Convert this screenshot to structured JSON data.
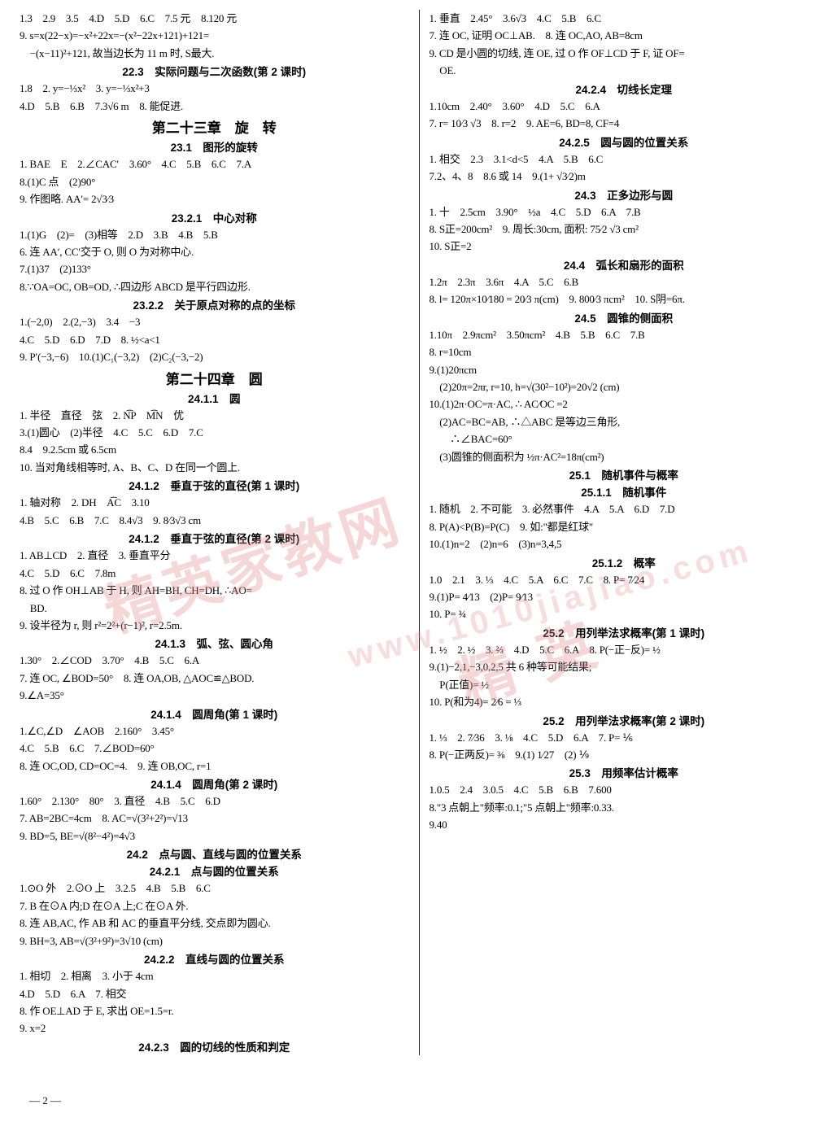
{
  "colors": {
    "text": "#000000",
    "bg": "#ffffff",
    "watermark": "#e59090",
    "rule": "#222222"
  },
  "fonts": {
    "body": "SimSun",
    "heading": "SimHei",
    "body_size": 13,
    "heading_big": 17,
    "heading_mid": 13.5
  },
  "watermarks": [
    "精英家教网",
    "www.1010jiajiao.com",
    "精 英"
  ],
  "page_number": "— 2 —",
  "left": [
    {
      "t": "l",
      "v": "1.3　2.9　3.5　4.D　5.D　6.C　7.5 元　8.120 元"
    },
    {
      "t": "l",
      "v": "9. s=x(22−x)=−x²+22x=−(x²−22x+121)+121="
    },
    {
      "t": "l",
      "v": "　−(x−11)²+121, 故当边长为 11 m 时, S最大."
    },
    {
      "t": "hm",
      "v": "22.3　实际问题与二次函数(第 2 课时)"
    },
    {
      "t": "l",
      "v": "1.8　2. y=−⅓x²　3. y=−⅓x²+3"
    },
    {
      "t": "l",
      "v": "4.D　5.B　6.B　7.3√6 m　8. 能促进."
    },
    {
      "t": "hb",
      "v": "第二十三章　旋　转"
    },
    {
      "t": "hm",
      "v": "23.1　图形的旋转"
    },
    {
      "t": "l",
      "v": "1. BAE　E　2.∠CAC′　3.60°　4.C　5.B　6.C　7.A"
    },
    {
      "t": "l",
      "v": "8.(1)C 点　(2)90°"
    },
    {
      "t": "l",
      "v": "9. 作图略. AA′= 2√3⁄3"
    },
    {
      "t": "hm",
      "v": "23.2.1　中心对称"
    },
    {
      "t": "l",
      "v": "1.(1)G　(2)=　(3)相等　2.D　3.B　4.B　5.B"
    },
    {
      "t": "l",
      "v": "6. 连 AA′, CC′交于 O, 则 O 为对称中心."
    },
    {
      "t": "l",
      "v": "7.(1)37　(2)133°"
    },
    {
      "t": "l",
      "v": "8.∵OA=OC, OB=OD, ∴四边形 ABCD 是平行四边形."
    },
    {
      "t": "hm",
      "v": "23.2.2　关于原点对称的点的坐标"
    },
    {
      "t": "l",
      "v": "1.(−2,0)　2.(2,−3)　3.4　−3"
    },
    {
      "t": "l",
      "v": "4.C　5.D　6.D　7.D　8. ½<a<1"
    },
    {
      "t": "l",
      "v": "9. P′(−3,−6)　10.(1)C₁(−3,2)　(2)C₂(−3,−2)"
    },
    {
      "t": "hb",
      "v": "第二十四章　圆"
    },
    {
      "t": "hm",
      "v": "24.1.1　圆"
    },
    {
      "t": "l",
      "v": "1. 半径　直径　弦　2. N͡P　M͡N　优"
    },
    {
      "t": "l",
      "v": "3.(1)圆心　(2)半径　4.C　5.C　6.D　7.C"
    },
    {
      "t": "l",
      "v": "8.4　9.2.5cm 或 6.5cm"
    },
    {
      "t": "l",
      "v": "10. 当对角线相等时, A、B、C、D 在同一个圆上."
    },
    {
      "t": "hm",
      "v": "24.1.2　垂直于弦的直径(第 1 课时)"
    },
    {
      "t": "l",
      "v": "1. 轴对称　2. DH　A͡C　3.10"
    },
    {
      "t": "l",
      "v": "4.B　5.C　6.B　7.C　8.4√3　9. 8⁄3√3 cm"
    },
    {
      "t": "hm",
      "v": "24.1.2　垂直于弦的直径(第 2 课时)"
    },
    {
      "t": "l",
      "v": "1. AB⊥CD　2. 直径　3. 垂直平分"
    },
    {
      "t": "l",
      "v": "4.C　5.D　6.C　7.8m"
    },
    {
      "t": "l",
      "v": "8. 过 O 作 OH⊥AB 于 H, 则 AH=BH, CH=DH, ∴AO="
    },
    {
      "t": "l",
      "v": "　BD."
    },
    {
      "t": "l",
      "v": "9. 设半径为 r, 则 r²=2²+(r−1)², r=2.5m."
    },
    {
      "t": "hm",
      "v": "24.1.3　弧、弦、圆心角"
    },
    {
      "t": "l",
      "v": "1.30°　2.∠COD　3.70°　4.B　5.C　6.A"
    },
    {
      "t": "l",
      "v": "7. 连 OC, ∠BOD=50°　8. 连 OA,OB, △AOC≌△BOD."
    },
    {
      "t": "l",
      "v": "9.∠A=35°"
    },
    {
      "t": "hm",
      "v": "24.1.4　圆周角(第 1 课时)"
    },
    {
      "t": "l",
      "v": "1.∠C,∠D　∠AOB　2.160°　3.45°"
    },
    {
      "t": "l",
      "v": "4.C　5.B　6.C　7.∠BOD=60°"
    },
    {
      "t": "l",
      "v": "8. 连 OC,OD, CD=OC=4.　9. 连 OB,OC, r=1"
    },
    {
      "t": "hm",
      "v": "24.1.4　圆周角(第 2 课时)"
    },
    {
      "t": "l",
      "v": "1.60°　2.130°　80°　3. 直径　4.B　5.C　6.D"
    },
    {
      "t": "l",
      "v": "7. AB=2BC=4cm　8. AC=√(3²+2²)=√13"
    },
    {
      "t": "l",
      "v": "9. BD=5, BE=√(8²−4²)=4√3"
    },
    {
      "t": "hm",
      "v": "24.2　点与圆、直线与圆的位置关系"
    },
    {
      "t": "hm",
      "v": "24.2.1　点与圆的位置关系"
    },
    {
      "t": "l",
      "v": "1.⊙O 外　2.⊙O 上　3.2.5　4.B　5.B　6.C"
    },
    {
      "t": "l",
      "v": "7. B 在⊙A 内;D 在⊙A 上;C 在⊙A 外."
    },
    {
      "t": "l",
      "v": "8. 连 AB,AC, 作 AB 和 AC 的垂直平分线, 交点即为圆心."
    },
    {
      "t": "l",
      "v": "9. BH=3, AB=√(3²+9²)=3√10 (cm)"
    },
    {
      "t": "hm",
      "v": "24.2.2　直线与圆的位置关系"
    },
    {
      "t": "l",
      "v": "1. 相切　2. 相离　3. 小于 4cm"
    },
    {
      "t": "l",
      "v": "4.D　5.D　6.A　7. 相交"
    },
    {
      "t": "l",
      "v": "8. 作 OE⊥AD 于 E, 求出 OE=1.5=r."
    },
    {
      "t": "l",
      "v": "9. x=2"
    },
    {
      "t": "hm",
      "v": "24.2.3　圆的切线的性质和判定"
    }
  ],
  "right": [
    {
      "t": "l",
      "v": "1. 垂直　2.45°　3.6√3　4.C　5.B　6.C"
    },
    {
      "t": "l",
      "v": "7. 连 OC, 证明 OC⊥AB.　8. 连 OC,AO, AB=8cm"
    },
    {
      "t": "l",
      "v": "9. CD 是小圆的切线, 连 OE, 过 O 作 OF⊥CD 于 F, 证 OF="
    },
    {
      "t": "l",
      "v": "　OE."
    },
    {
      "t": "hm",
      "v": "24.2.4　切线长定理"
    },
    {
      "t": "l",
      "v": "1.10cm　2.40°　3.60°　4.D　5.C　6.A"
    },
    {
      "t": "l",
      "v": "7. r= 10⁄3 √3　8. r=2　9. AE=6, BD=8, CF=4"
    },
    {
      "t": "hm",
      "v": "24.2.5　圆与圆的位置关系"
    },
    {
      "t": "l",
      "v": "1. 相交　2.3　3.1<d<5　4.A　5.B　6.C"
    },
    {
      "t": "l",
      "v": "7.2、4、8　8.6 或 14　9.(1+ √3⁄2)m"
    },
    {
      "t": "hm",
      "v": "24.3　正多边形与圆"
    },
    {
      "t": "l",
      "v": "1. 十　2.5cm　3.90°　½a　4.C　5.D　6.A　7.B"
    },
    {
      "t": "l",
      "v": "8. S正=200cm²　9. 周长:30cm, 面积: 75⁄2 √3 cm²"
    },
    {
      "t": "l",
      "v": "10. S正=2"
    },
    {
      "t": "hm",
      "v": "24.4　弧长和扇形的面积"
    },
    {
      "t": "l",
      "v": "1.2π　2.3π　3.6π　4.A　5.C　6.B"
    },
    {
      "t": "l",
      "v": "8. l= 120π×10⁄180 = 20⁄3 π(cm)　9. 800⁄3 πcm²　10. S阴=6π."
    },
    {
      "t": "hm",
      "v": "24.5　圆锥的侧面积"
    },
    {
      "t": "l",
      "v": "1.10π　2.9πcm²　3.50πcm²　4.B　5.B　6.C　7.B"
    },
    {
      "t": "l",
      "v": "8. r=10cm"
    },
    {
      "t": "l",
      "v": "9.(1)20πcm"
    },
    {
      "t": "l",
      "v": "　(2)20π=2πr, r=10, h=√(30²−10²)=20√2 (cm)"
    },
    {
      "t": "l",
      "v": "10.(1)2π·OC=π·AC, ∴ AC⁄OC =2"
    },
    {
      "t": "l",
      "v": "　(2)AC=BC=AB, ∴△ABC 是等边三角形,"
    },
    {
      "t": "l",
      "v": "　　∴∠BAC=60°"
    },
    {
      "t": "l",
      "v": "　(3)圆锥的侧面积为 ½π·AC²=18π(cm²)"
    },
    {
      "t": "hm",
      "v": "25.1　随机事件与概率"
    },
    {
      "t": "hm",
      "v": "25.1.1　随机事件"
    },
    {
      "t": "l",
      "v": "1. 随机　2. 不可能　3. 必然事件　4.A　5.A　6.D　7.D"
    },
    {
      "t": "l",
      "v": "8. P(A)<P(B)=P(C)　9. 如:\"都是红球\""
    },
    {
      "t": "l",
      "v": "10.(1)n=2　(2)n=6　(3)n=3,4,5"
    },
    {
      "t": "hm",
      "v": "25.1.2　概率"
    },
    {
      "t": "l",
      "v": "1.0　2.1　3. ⅓　4.C　5.A　6.C　7.C　8. P= 7⁄24"
    },
    {
      "t": "l",
      "v": "9.(1)P= 4⁄13　(2)P= 9⁄13"
    },
    {
      "t": "l",
      "v": "10. P= ¾"
    },
    {
      "t": "hm",
      "v": "25.2　用列举法求概率(第 1 课时)"
    },
    {
      "t": "l",
      "v": "1. ½　2. ½　3. ⅔　4.D　5.C　6.A　8. P(−正−反)= ½"
    },
    {
      "t": "l",
      "v": "9.(1)−2,1,−3,0,2,5 共 6 种等可能结果;"
    },
    {
      "t": "l",
      "v": "　P(正值)= ½"
    },
    {
      "t": "l",
      "v": "10. P(和为4)= 2⁄6 = ⅓"
    },
    {
      "t": "hm",
      "v": "25.2　用列举法求概率(第 2 课时)"
    },
    {
      "t": "l",
      "v": "1. ⅓　2. 7⁄36　3. ⅛　4.C　5.D　6.A　7. P= ⅙"
    },
    {
      "t": "l",
      "v": "8. P(−正两反)= ⅜　9.(1) 1⁄27　(2) ⅑"
    },
    {
      "t": "hm",
      "v": "25.3　用频率估计概率"
    },
    {
      "t": "l",
      "v": "1.0.5　2.4　3.0.5　4.C　5.B　6.B　7.600"
    },
    {
      "t": "l",
      "v": "8.\"3 点朝上\"频率:0.1;\"5 点朝上\"频率:0.33."
    },
    {
      "t": "l",
      "v": "9.40"
    }
  ]
}
